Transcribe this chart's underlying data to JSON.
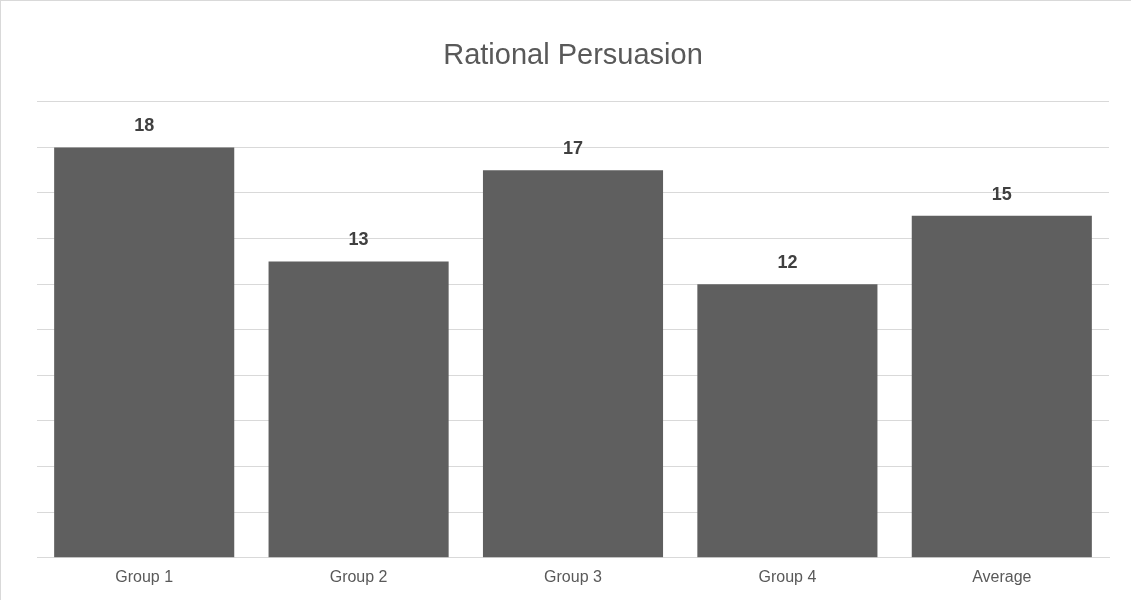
{
  "chart_data": {
    "type": "bar",
    "title": "Rational Persuasion",
    "categories": [
      "Group 1",
      "Group 2",
      "Group 3",
      "Group 4",
      "Average"
    ],
    "values": [
      18,
      13,
      17,
      12,
      15
    ],
    "color": "#5f5f5f",
    "ylim": [
      0,
      20
    ],
    "yticks": [
      {
        "value": 0,
        "label": null
      },
      {
        "value": 2,
        "label": null
      },
      {
        "value": 4,
        "label": null
      },
      {
        "value": 6,
        "label": null
      },
      {
        "value": 8,
        "label": null
      },
      {
        "value": 10,
        "label": null
      },
      {
        "value": 12,
        "label": null
      },
      {
        "value": 14,
        "label": null
      },
      {
        "value": 16,
        "label": null
      },
      {
        "value": 18,
        "label": null
      },
      {
        "value": 20,
        "label": null
      }
    ],
    "grid": "y",
    "tick_labels": "x",
    "data_labels": true,
    "legend": false
  }
}
